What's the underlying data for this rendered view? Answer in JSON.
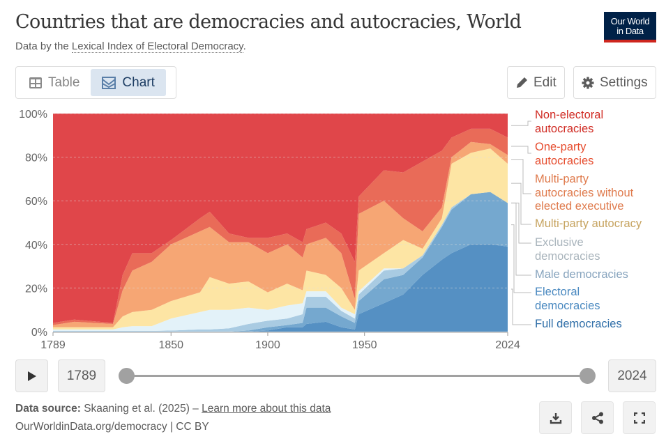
{
  "header": {
    "title": "Countries that are democracies and autocracies, World",
    "subtitle_prefix": "Data by the ",
    "subtitle_link": "Lexical Index of Electoral Democracy",
    "subtitle_suffix": ".",
    "logo_line1": "Our World",
    "logo_line2": "in Data"
  },
  "toolbar": {
    "table_label": "Table",
    "chart_label": "Chart",
    "edit_label": "Edit",
    "settings_label": "Settings"
  },
  "timeline": {
    "start": "1789",
    "end": "2024",
    "start_fraction": 0,
    "end_fraction": 1
  },
  "footer": {
    "source_label": "Data source:",
    "source_text": " Skaaning et al. (2025) – ",
    "learn_more": "Learn more about this data",
    "url": "OurWorldinData.org/democracy | CC BY"
  },
  "colors": {
    "full": "#5590c3",
    "electoral": "#75a8cf",
    "male": "#a9cbe2",
    "exclusive": "#e3f2f9",
    "mpa": "#fde5a4",
    "mpwo": "#f6a674",
    "one": "#e96b58",
    "nonel": "#e0464a"
  },
  "chart_data": {
    "type": "area",
    "stacked": true,
    "title": "Countries that are democracies and autocracies, World",
    "xlabel": "",
    "ylabel": "",
    "xlim": [
      1789,
      2024
    ],
    "ylim": [
      0,
      100
    ],
    "x_ticks": [
      "1789",
      "1850",
      "1900",
      "1950",
      "2024"
    ],
    "y_ticks": [
      "0%",
      "20%",
      "40%",
      "60%",
      "80%",
      "100%"
    ],
    "grid": true,
    "legend_placement": "right",
    "x": [
      1789,
      1800,
      1820,
      1825,
      1830,
      1840,
      1850,
      1865,
      1870,
      1880,
      1890,
      1900,
      1910,
      1918,
      1920,
      1930,
      1938,
      1945,
      1947,
      1960,
      1970,
      1980,
      1990,
      1995,
      2005,
      2015,
      2024
    ],
    "series": [
      {
        "name": "Full democracies",
        "key": "full",
        "text_color": "#2f6ea8",
        "values": [
          0,
          0,
          0,
          0,
          0,
          0,
          0,
          0,
          0,
          0,
          0,
          0.5,
          2,
          2,
          3.5,
          4.5,
          2,
          1,
          8,
          13,
          17,
          26,
          33,
          36,
          40,
          40,
          39
        ]
      },
      {
        "name": "Electoral democracies",
        "key": "electoral",
        "text_color": "#4a89c0",
        "values": [
          0,
          0,
          0,
          0,
          0,
          0,
          0,
          0,
          0,
          0,
          0.5,
          1.5,
          1,
          2,
          7.5,
          6.5,
          5,
          3,
          6,
          11,
          9,
          8,
          15,
          20,
          23,
          24,
          20
        ]
      },
      {
        "name": "Male democracies",
        "key": "male",
        "text_color": "#86a3bd",
        "values": [
          0.3,
          0.3,
          0.3,
          0.3,
          0.3,
          0.3,
          0.5,
          1,
          1,
          1.5,
          3,
          3,
          3,
          4,
          5,
          5,
          2.5,
          2,
          3,
          4,
          3,
          1,
          1,
          1,
          0,
          0,
          0
        ]
      },
      {
        "name": "Exclusive democracies",
        "key": "exclusive",
        "text_color": "#a9b4bc",
        "values": [
          0.7,
          0.7,
          0.7,
          1.7,
          2.2,
          2.2,
          5.5,
          8,
          9,
          8.5,
          7.5,
          5,
          6,
          5,
          2.5,
          2.5,
          1.5,
          2,
          1.5,
          1,
          0,
          0,
          0,
          0,
          0,
          0,
          0
        ]
      },
      {
        "name": "Multi-party autocracy",
        "key": "mpa",
        "text_color": "#c6a35f",
        "values": [
          1,
          1,
          1,
          5,
          6.5,
          7.5,
          8,
          9,
          15,
          12,
          12,
          8,
          10,
          6,
          9.5,
          7.5,
          9,
          2,
          9.5,
          7,
          13,
          3,
          3,
          20,
          19,
          20,
          18
        ]
      },
      {
        "name": "Multi-party autocracies without elected executive",
        "key": "mpwo",
        "text_color": "#df7a4c",
        "values": [
          1,
          2.5,
          1.5,
          12,
          19,
          22,
          26,
          28,
          23,
          19,
          18,
          18,
          18,
          15,
          12,
          17,
          16,
          5,
          26,
          24,
          10,
          8,
          5,
          3,
          5,
          2,
          4
        ]
      },
      {
        "name": "One-party autocracies",
        "key": "one",
        "text_color": "#e64c2e",
        "values": [
          1,
          1,
          0.5,
          7,
          8,
          4,
          2,
          6,
          7,
          4,
          2,
          7,
          5,
          7,
          7,
          7,
          9,
          17,
          8,
          14,
          21,
          32,
          26,
          9,
          6,
          7,
          8
        ]
      },
      {
        "name": "Non-electoral autocracies",
        "key": "nonel",
        "text_color": "#d02a22",
        "values": [
          96,
          94.5,
          96,
          74,
          64,
          64,
          58,
          48,
          45,
          55,
          57,
          57,
          55,
          59,
          53,
          50,
          55,
          68,
          38,
          26,
          27,
          22,
          17,
          11,
          7,
          7,
          11
        ]
      }
    ],
    "legend_lines": {
      "one": [
        "Non-electoral",
        "autocracies"
      ],
      "two": [
        "One-party",
        "autocracies"
      ],
      "three": [
        "Multi-party",
        "autocracies without",
        "elected executive"
      ],
      "four": [
        "Multi-party autocracy"
      ],
      "five": [
        "Exclusive",
        "democracies"
      ],
      "six": [
        "Male democracies"
      ],
      "seven": [
        "Electoral",
        "democracies"
      ],
      "eight": [
        "Full democracies"
      ]
    }
  }
}
